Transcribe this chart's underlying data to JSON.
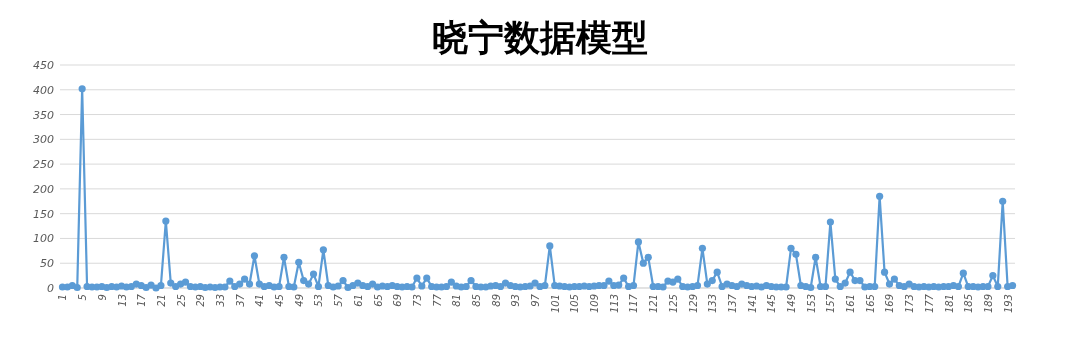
{
  "chart_data": {
    "type": "line",
    "title": "晓宁数据模型",
    "categories": [
      "1",
      null,
      null,
      null,
      "5",
      null,
      null,
      null,
      "9",
      null,
      null,
      null,
      "13",
      null,
      null,
      null,
      "17",
      null,
      null,
      null,
      "21",
      null,
      null,
      null,
      "25",
      null,
      null,
      null,
      "29",
      null,
      null,
      null,
      "33",
      null,
      null,
      null,
      "37",
      null,
      null,
      null,
      "41",
      null,
      null,
      null,
      "45",
      null,
      null,
      null,
      "49",
      null,
      null,
      null,
      "53",
      null,
      null,
      null,
      "57",
      null,
      null,
      null,
      "61",
      null,
      null,
      null,
      "65",
      null,
      null,
      null,
      "69",
      null,
      null,
      null,
      "73",
      null,
      null,
      null,
      "77",
      null,
      null,
      null,
      "81",
      null,
      null,
      null,
      "85",
      null,
      null,
      null,
      "89",
      null,
      null,
      null,
      "93",
      null,
      null,
      null,
      "97",
      null,
      null,
      null,
      "101",
      null,
      null,
      null,
      "105",
      null,
      null,
      null,
      "109",
      null,
      null,
      null,
      "113",
      null,
      null,
      null,
      "117",
      null,
      null,
      null,
      "121",
      null,
      null,
      null,
      "125",
      null,
      null,
      null,
      "129",
      null,
      null,
      null,
      "133",
      null,
      null,
      null,
      "137",
      null,
      null,
      null,
      "141",
      null,
      null,
      null,
      "145",
      null,
      null,
      null,
      "149",
      null,
      null,
      null,
      "153",
      null,
      null,
      null,
      "157",
      null,
      null,
      null,
      "161",
      null,
      null,
      null,
      "165",
      null,
      null,
      null,
      "169",
      null,
      null,
      null,
      "173",
      null,
      null,
      null,
      "177",
      null,
      null,
      null,
      "181",
      null,
      null,
      null,
      "185",
      null,
      null,
      null,
      "189",
      null,
      null,
      null,
      "193",
      null
    ],
    "values": [
      2,
      2,
      5,
      1,
      402,
      3,
      2,
      2,
      3,
      1,
      3,
      2,
      4,
      2,
      3,
      8,
      5,
      1,
      6,
      0,
      5,
      135,
      10,
      3,
      8,
      12,
      3,
      2,
      3,
      1,
      2,
      1,
      2,
      2,
      14,
      3,
      8,
      18,
      8,
      65,
      8,
      3,
      5,
      2,
      3,
      62,
      3,
      2,
      52,
      15,
      8,
      28,
      3,
      77,
      5,
      2,
      4,
      15,
      1,
      5,
      10,
      5,
      3,
      8,
      2,
      4,
      3,
      5,
      3,
      2,
      3,
      2,
      20,
      4,
      20,
      3,
      2,
      2,
      3,
      12,
      4,
      2,
      3,
      15,
      3,
      2,
      2,
      4,
      5,
      3,
      10,
      5,
      3,
      2,
      3,
      4,
      10,
      3,
      5,
      85,
      5,
      4,
      3,
      2,
      3,
      3,
      4,
      3,
      4,
      5,
      5,
      14,
      5,
      6,
      20,
      3,
      5,
      93,
      50,
      62,
      3,
      3,
      2,
      14,
      12,
      18,
      3,
      2,
      3,
      5,
      80,
      8,
      15,
      32,
      3,
      8,
      5,
      3,
      8,
      5,
      3,
      4,
      2,
      5,
      3,
      2,
      2,
      2,
      80,
      68,
      5,
      3,
      1,
      62,
      3,
      3,
      133,
      18,
      3,
      10,
      32,
      15,
      15,
      2,
      3,
      3,
      185,
      32,
      8,
      18,
      5,
      3,
      8,
      3,
      2,
      3,
      2,
      3,
      2,
      3,
      3,
      5,
      3,
      30,
      3,
      3,
      2,
      3,
      3,
      25,
      3,
      175,
      3,
      5
    ],
    "color": "#5b9bd5",
    "ylim": [
      0,
      450
    ],
    "yticks": [
      0,
      50,
      100,
      150,
      200,
      250,
      300,
      350,
      400,
      450
    ],
    "grid": "y",
    "marker": "circle"
  }
}
